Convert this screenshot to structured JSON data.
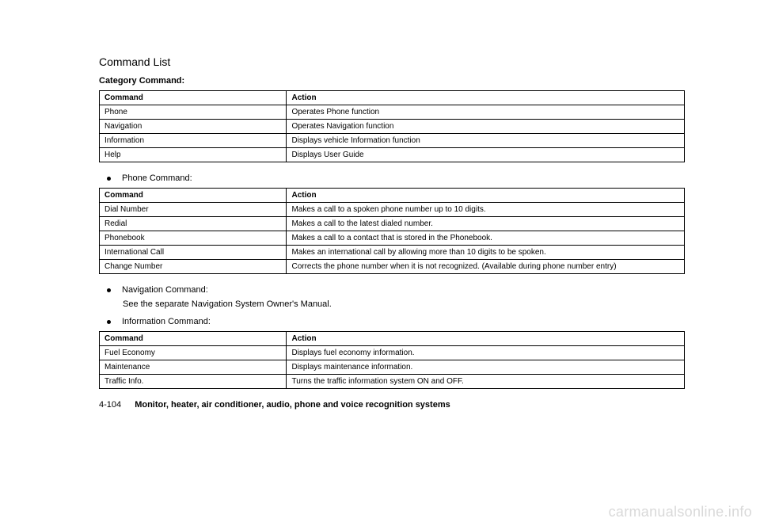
{
  "heading": "Command List",
  "category_label": "Category Command:",
  "table_headers": {
    "command": "Command",
    "action": "Action"
  },
  "category_rows": [
    {
      "command": "Phone",
      "action": "Operates Phone function"
    },
    {
      "command": "Navigation",
      "action": "Operates Navigation function"
    },
    {
      "command": "Information",
      "action": "Displays vehicle Information function"
    },
    {
      "command": "Help",
      "action": "Displays User Guide"
    }
  ],
  "phone_bullet": "Phone Command:",
  "phone_rows": [
    {
      "command": "Dial Number",
      "action": "Makes a call to a spoken phone number up to 10 digits."
    },
    {
      "command": "Redial",
      "action": "Makes a call to the latest dialed number."
    },
    {
      "command": "Phonebook",
      "action": "Makes a call to a contact that is stored in the Phonebook."
    },
    {
      "command": "International Call",
      "action": "Makes an international call by allowing more than 10 digits to be spoken."
    },
    {
      "command": "Change Number",
      "action": "Corrects the phone number when it is not recognized. (Available during phone number entry)"
    }
  ],
  "nav_bullet": "Navigation Command:",
  "nav_text": "See the separate Navigation System Owner's Manual.",
  "info_bullet": "Information Command:",
  "info_rows": [
    {
      "command": "Fuel Economy",
      "action": "Displays fuel economy information."
    },
    {
      "command": "Maintenance",
      "action": "Displays maintenance information."
    },
    {
      "command": "Traffic Info.",
      "action": "Turns the traffic information system ON and OFF."
    }
  ],
  "footer": {
    "page_number": "4-104",
    "section": "Monitor, heater, air conditioner, audio, phone and voice recognition systems"
  },
  "watermark": "carmanualsonline.info"
}
